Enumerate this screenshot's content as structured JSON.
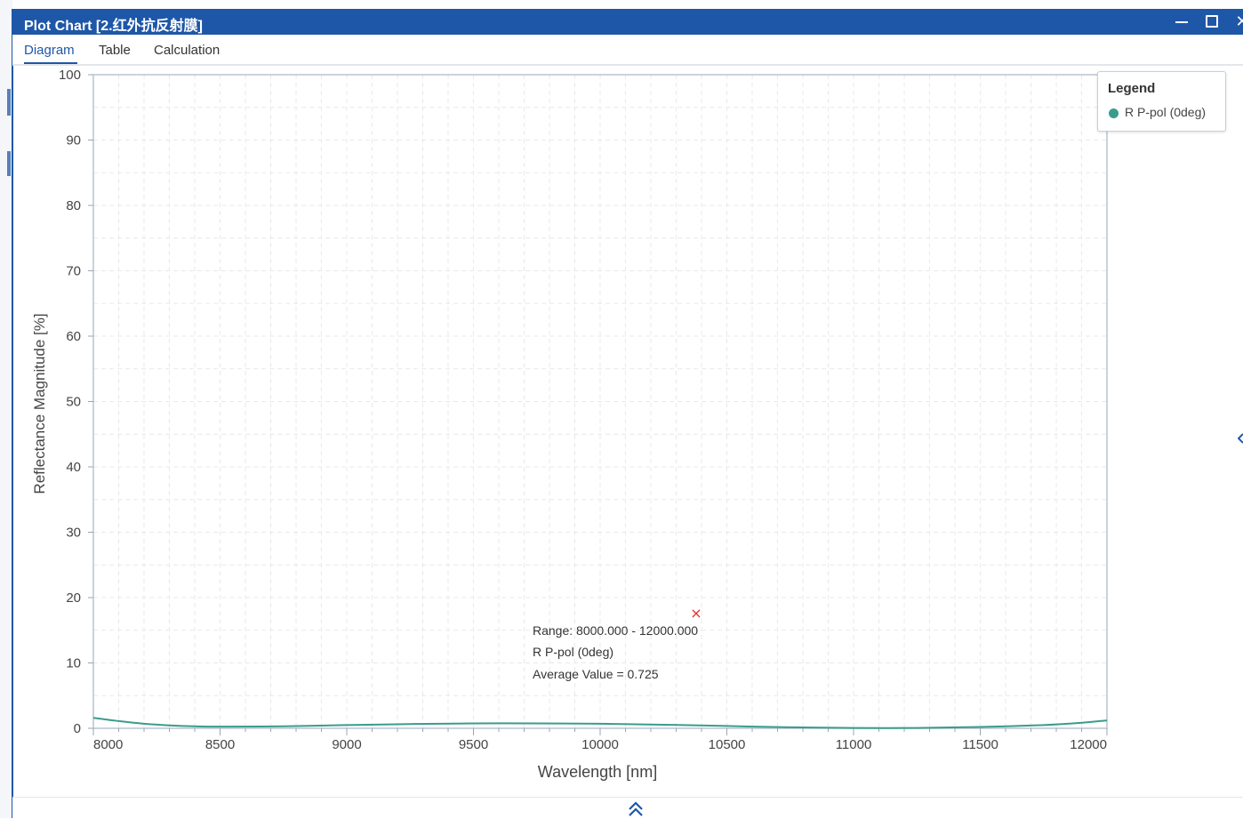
{
  "window": {
    "title": "Plot Chart [2.红外抗反射膜]",
    "controls": [
      "minimize",
      "maximize",
      "close"
    ],
    "close_glyph": "✕"
  },
  "tabs": [
    {
      "label": "Diagram",
      "active": true
    },
    {
      "label": "Table",
      "active": false
    },
    {
      "label": "Calculation",
      "active": false
    }
  ],
  "legend": {
    "title": "Legend",
    "items": [
      {
        "label": "R P-pol (0deg)",
        "color": "#3a9c8c"
      }
    ]
  },
  "annotation": {
    "marker": "×",
    "marker_color": "#e03030",
    "lines": [
      "Range: 8000.000 - 12000.000",
      "R P-pol (0deg)",
      "Average Value = 0.725"
    ]
  },
  "chart_data": {
    "type": "line",
    "xlabel": "Wavelength [nm]",
    "ylabel": "Reflectance Magnitude [%]",
    "xlim": [
      8000,
      12000
    ],
    "ylim": [
      0,
      100
    ],
    "xticks": [
      8000,
      8500,
      9000,
      9500,
      10000,
      10500,
      11000,
      11500,
      12000
    ],
    "yticks": [
      0,
      10,
      20,
      30,
      40,
      50,
      60,
      70,
      80,
      90,
      100
    ],
    "grid": true,
    "legend_position": "top-right",
    "series": [
      {
        "name": "R P-pol (0deg)",
        "color": "#3a9c8c",
        "x": [
          8000,
          8100,
          8200,
          8300,
          8400,
          8500,
          8750,
          9000,
          9250,
          9500,
          9750,
          10000,
          10250,
          10500,
          10750,
          11000,
          11250,
          11500,
          11750,
          11900,
          12000
        ],
        "y": [
          1.6,
          1.1,
          0.7,
          0.45,
          0.3,
          0.25,
          0.3,
          0.5,
          0.65,
          0.75,
          0.75,
          0.7,
          0.55,
          0.35,
          0.15,
          0.05,
          0.05,
          0.2,
          0.5,
          0.85,
          1.2
        ]
      }
    ]
  },
  "bottom": {
    "expand_icon": "double-chevron-up"
  }
}
